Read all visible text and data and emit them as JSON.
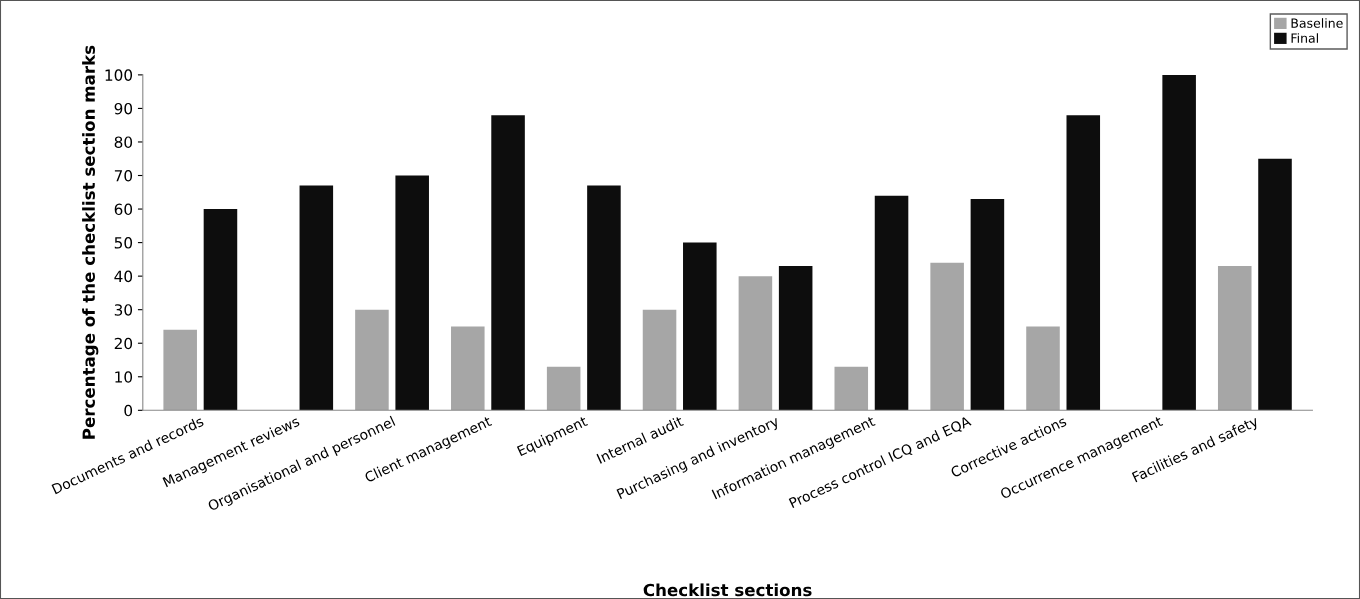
{
  "chart_data": {
    "type": "bar",
    "xlabel": "Checklist sections",
    "ylabel": "Percentage of the checklist section marks",
    "categories": [
      "Documents and records",
      "Management reviews",
      "Organisational and personnel",
      "Client management",
      "Equipment",
      "Internal audit",
      "Purchasing and inventory",
      "Information management",
      "Process control ICQ and EQA",
      "Corrective actions",
      "Occurrence management",
      "Facilities and safety"
    ],
    "series": [
      {
        "name": "Baseline",
        "color": "#a6a6a6",
        "values": [
          24,
          0,
          30,
          25,
          13,
          30,
          40,
          13,
          44,
          25,
          0,
          43
        ]
      },
      {
        "name": "Final",
        "color": "#0d0d0d",
        "values": [
          60,
          67,
          70,
          88,
          67,
          50,
          43,
          64,
          63,
          88,
          100,
          75
        ]
      }
    ],
    "ylim": [
      0,
      100
    ],
    "yticks": [
      0,
      10,
      20,
      30,
      40,
      50,
      60,
      70,
      80,
      90,
      100
    ],
    "grid": false,
    "legend": "top right"
  }
}
